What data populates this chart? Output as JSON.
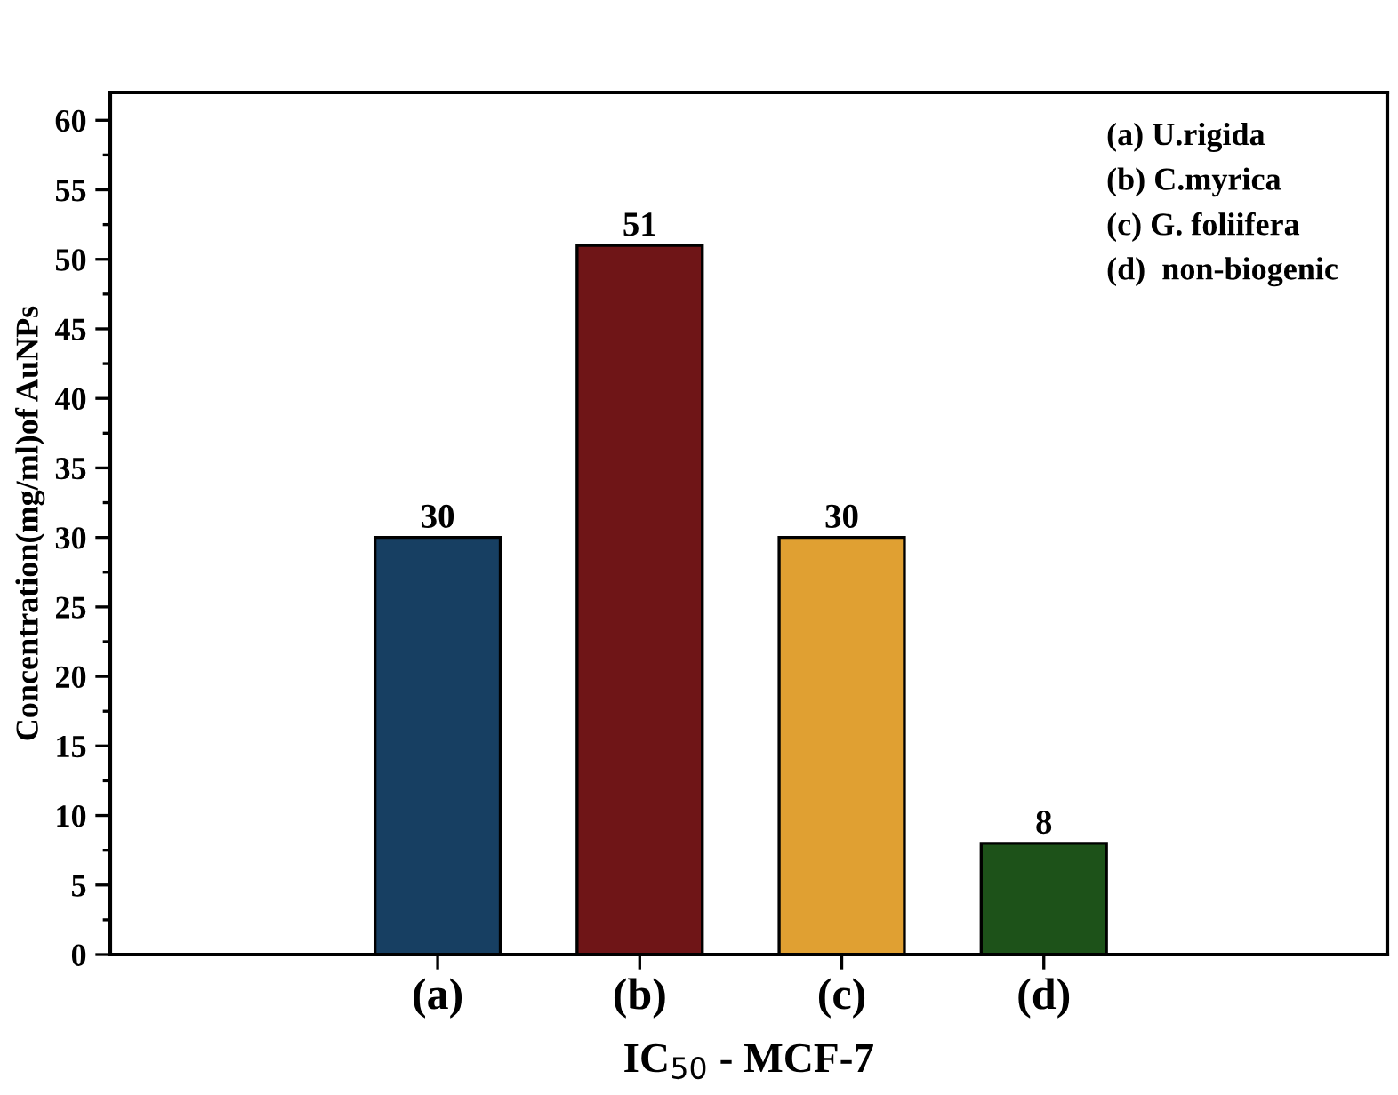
{
  "chart_data": {
    "type": "bar",
    "xlabel": "IC$_{50}$ - MCF-7",
    "ylabel": "Concentration(mg/ml)of AuNPs",
    "categories": [
      "(a)",
      "(b)",
      "(c)",
      "(d)"
    ],
    "values": [
      30,
      51,
      30,
      8
    ],
    "colors": [
      "#173f62",
      "#6f1517",
      "#e0a032",
      "#1d5219"
    ],
    "ylim": [
      0,
      62
    ],
    "yticks": [
      0,
      5,
      10,
      15,
      20,
      25,
      30,
      35,
      40,
      45,
      50,
      55,
      60
    ],
    "data_labels": true,
    "grid": false,
    "legend": false,
    "annotations": [
      "(a) U.rigida",
      "(b) C.myrica",
      "(c) G. foliifera",
      "(d)  non-biogenic"
    ]
  }
}
